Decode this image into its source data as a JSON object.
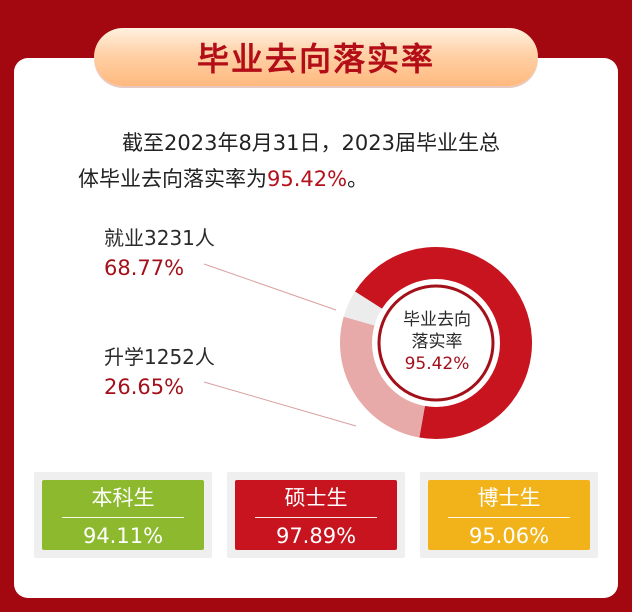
{
  "title": "毕业去向落实率",
  "intro": {
    "line1": "截至2023年8月31日，2023届毕业生总",
    "line2_prefix": "体毕业去向落实率为",
    "line2_value": "95.42%",
    "line2_suffix": "。"
  },
  "chart_data": {
    "type": "pie",
    "variant": "donut",
    "center_label_line1": "毕业去向",
    "center_label_line2": "落实率",
    "center_value": "95.42%",
    "slices": [
      {
        "label": "就业3231人",
        "value": 68.77,
        "value_label": "68.77%",
        "color": "#c8141f"
      },
      {
        "label": "升学1252人",
        "value": 26.65,
        "value_label": "26.65%",
        "color": "#e8a9a9"
      },
      {
        "label": "",
        "value": 4.58,
        "color": "#ececec"
      }
    ]
  },
  "stats": [
    {
      "name": "本科生",
      "value": "94.11%",
      "color": "#8db92e"
    },
    {
      "name": "硕士生",
      "value": "97.89%",
      "color": "#c8141f"
    },
    {
      "name": "博士生",
      "value": "95.06%",
      "color": "#f2b31a"
    }
  ]
}
